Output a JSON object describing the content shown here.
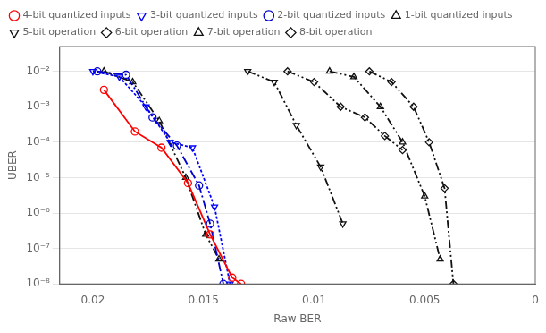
{
  "chart_data": {
    "type": "line",
    "xlabel": "Raw BER",
    "ylabel": "UBER",
    "log": "y",
    "grid": "y",
    "legend": "top",
    "xlim": [
      0,
      0.0215
    ],
    "xticks": [
      0.02,
      0.015,
      0.01,
      0.005,
      0
    ],
    "x_reversed": true,
    "ylim": [
      1e-08,
      0.05
    ],
    "yticks": [
      {
        "value": 1e-08,
        "label": "10⁻⁸"
      },
      {
        "value": 1e-07,
        "label": "10⁻⁷"
      },
      {
        "value": 1e-06,
        "label": "10⁻⁶"
      },
      {
        "value": 1e-05,
        "label": "10⁻⁵"
      },
      {
        "value": 0.0001,
        "label": "10⁻⁴"
      },
      {
        "value": 0.001,
        "label": "10⁻³"
      },
      {
        "value": 0.01,
        "label": "10⁻²"
      }
    ],
    "series": [
      {
        "name": "4-bit quantized inputs",
        "color": "#ff0000",
        "line_style": "solid",
        "marker": "circle",
        "x": [
          0.0195,
          0.0181,
          0.0169,
          0.0157,
          0.0147,
          0.0137,
          0.0133
        ],
        "values": [
          0.003,
          0.0002,
          7e-05,
          7e-06,
          2.5e-07,
          1.5e-08,
          1e-08
        ]
      },
      {
        "name": "3-bit quantized inputs",
        "color": "#0000ff",
        "line_style": "dotted",
        "marker": "triangle-down",
        "x": [
          0.02,
          0.0188,
          0.0176,
          0.0165,
          0.0155,
          0.0145,
          0.0138
        ],
        "values": [
          0.01,
          0.007,
          0.001,
          0.0001,
          7e-05,
          1.5e-06,
          1e-08
        ]
      },
      {
        "name": "2-bit quantized inputs",
        "color": "#0000cc",
        "line_style": "dashdot",
        "marker": "circle",
        "x": [
          0.0198,
          0.0185,
          0.0173,
          0.0162,
          0.0152,
          0.0147,
          0.0141
        ],
        "values": [
          0.01,
          0.008,
          0.0005,
          8e-05,
          6e-06,
          5e-07,
          1e-08
        ]
      },
      {
        "name": "1-bit quantized inputs",
        "color": "#111111",
        "line_style": "dashdotdot",
        "marker": "triangle",
        "x": [
          0.0195,
          0.0182,
          0.017,
          0.0158,
          0.0149,
          0.0143
        ],
        "values": [
          0.01,
          0.005,
          0.0004,
          1e-05,
          2.5e-07,
          5e-08
        ]
      },
      {
        "name": "5-bit operation",
        "color": "#111111",
        "line_style": "dashdotdot",
        "marker": "triangle-down",
        "x": [
          0.013,
          0.0118,
          0.0108,
          0.0097,
          0.0087
        ],
        "values": [
          0.01,
          0.005,
          0.0003,
          2e-05,
          5e-07
        ]
      },
      {
        "name": "6-bit operation",
        "color": "#111111",
        "line_style": "dashdotdot",
        "marker": "diamond",
        "x": [
          0.0112,
          0.01,
          0.0088,
          0.0077,
          0.0068,
          0.006
        ],
        "values": [
          0.01,
          0.005,
          0.001,
          0.0005,
          0.00015,
          6e-05
        ]
      },
      {
        "name": "7-bit operation",
        "color": "#111111",
        "line_style": "dashdotdot",
        "marker": "triangle",
        "x": [
          0.0093,
          0.0082,
          0.007,
          0.006,
          0.005,
          0.0043
        ],
        "values": [
          0.01,
          0.007,
          0.001,
          0.0001,
          3e-06,
          5e-08
        ]
      },
      {
        "name": "8-bit operation",
        "color": "#111111",
        "line_style": "dashdotdot",
        "marker": "diamond",
        "x": [
          0.0075,
          0.0065,
          0.0055,
          0.0048,
          0.0041,
          0.0037
        ],
        "values": [
          0.01,
          0.005,
          0.001,
          0.0001,
          5e-06,
          1e-08
        ]
      }
    ]
  }
}
